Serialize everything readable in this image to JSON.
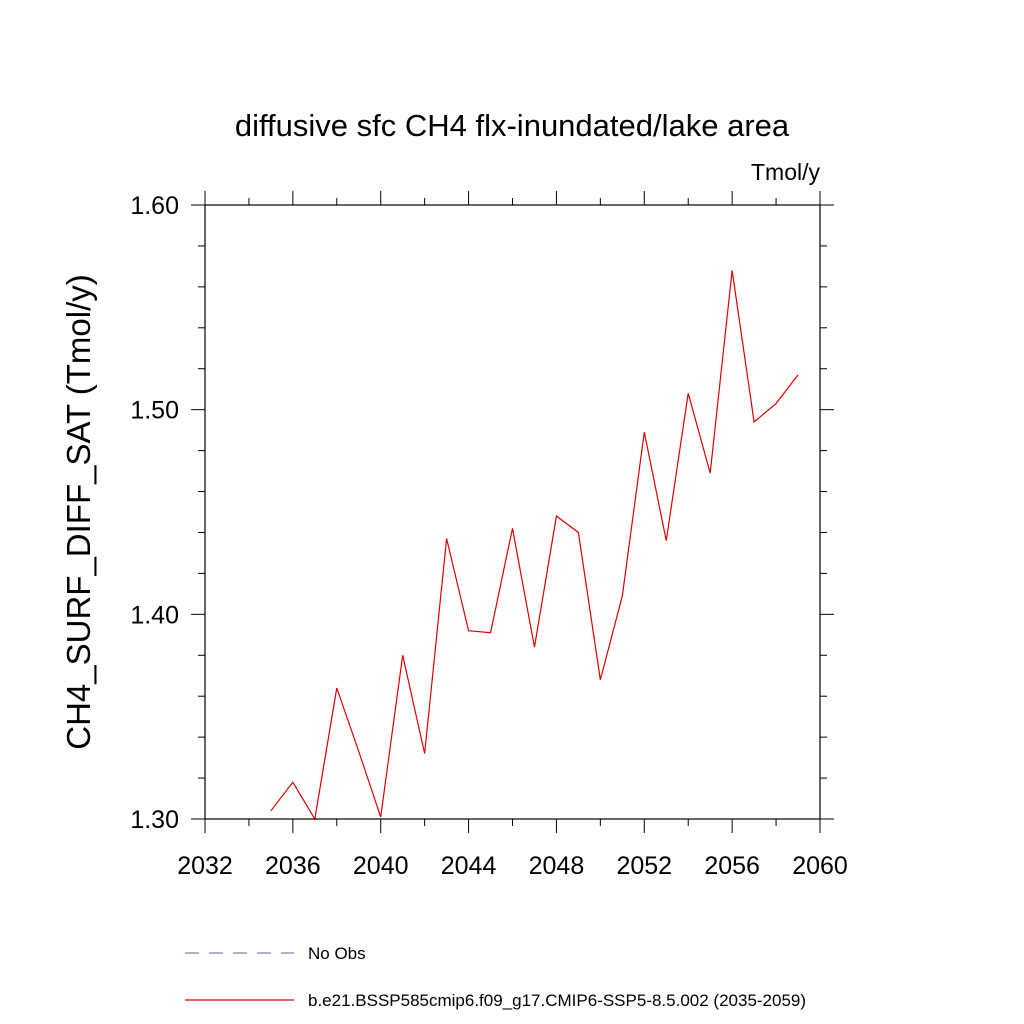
{
  "chart_data": {
    "type": "line",
    "title": "diffusive sfc CH4 flx-inundated/lake area",
    "units": "Tmol/y",
    "ylabel": "CH4_SURF_DIFF_SAT  (Tmol/y)",
    "xlabel": "",
    "xlim": [
      2032,
      2060
    ],
    "ylim": [
      1.3,
      1.6
    ],
    "xticks": [
      2032,
      2036,
      2040,
      2044,
      2048,
      2052,
      2056,
      2060
    ],
    "xtick_labels": [
      "2032",
      "2036",
      "2040",
      "2044",
      "2048",
      "2052",
      "2056",
      "2060"
    ],
    "yticks": [
      1.3,
      1.4,
      1.5,
      1.6
    ],
    "ytick_labels": [
      "1.30",
      "1.40",
      "1.50",
      "1.60"
    ],
    "grid": false,
    "legend_position": "bottom",
    "series": [
      {
        "name": "No Obs",
        "color": "#8080c0",
        "dash": "dashed",
        "x": [],
        "y": []
      },
      {
        "name": "b.e21.BSSP585cmip6.f09_g17.CMIP6-SSP5-8.5.002 (2035-2059)",
        "color": "#e00000",
        "dash": "solid",
        "x": [
          2035,
          2036,
          2037,
          2038,
          2039,
          2040,
          2041,
          2042,
          2043,
          2044,
          2045,
          2046,
          2047,
          2048,
          2049,
          2050,
          2051,
          2052,
          2053,
          2054,
          2055,
          2056,
          2057,
          2058,
          2059
        ],
        "y": [
          1.304,
          1.318,
          1.3,
          1.364,
          1.333,
          1.301,
          1.38,
          1.332,
          1.437,
          1.392,
          1.391,
          1.442,
          1.384,
          1.448,
          1.44,
          1.368,
          1.409,
          1.489,
          1.436,
          1.508,
          1.469,
          1.568,
          1.494,
          1.503,
          1.517
        ]
      }
    ]
  }
}
